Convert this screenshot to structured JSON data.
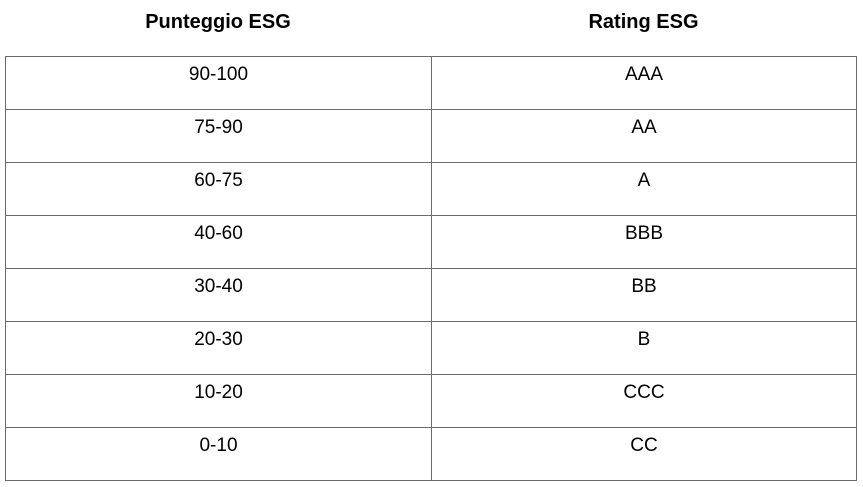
{
  "headers": {
    "score": "Punteggio ESG",
    "rating": "Rating ESG"
  },
  "rows": [
    {
      "score": "90-100",
      "rating": "AAA"
    },
    {
      "score": "75-90",
      "rating": "AA"
    },
    {
      "score": "60-75",
      "rating": "A"
    },
    {
      "score": "40-60",
      "rating": "BBB"
    },
    {
      "score": "30-40",
      "rating": "BB"
    },
    {
      "score": "20-30",
      "rating": "B"
    },
    {
      "score": "10-20",
      "rating": "CCC"
    },
    {
      "score": "0-10",
      "rating": "CC"
    }
  ]
}
